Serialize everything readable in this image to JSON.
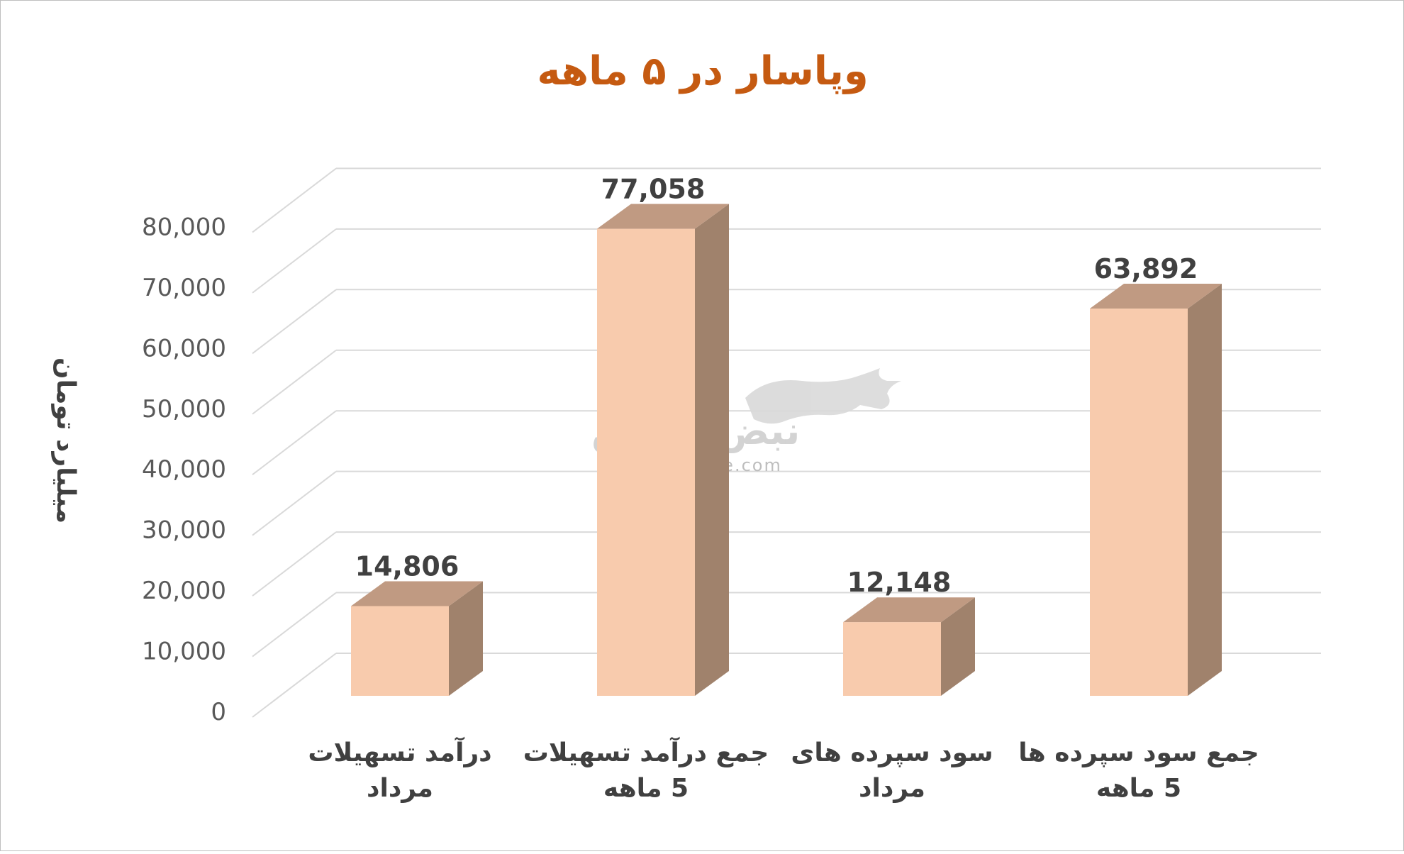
{
  "chart_data": {
    "type": "bar",
    "title": "وپاسار در ۵ ماهه",
    "ylabel": "میلیارد تومان",
    "ylim": [
      0,
      80000
    ],
    "yticks": [
      "0",
      "10,000",
      "20,000",
      "30,000",
      "40,000",
      "50,000",
      "60,000",
      "70,000",
      "80,000"
    ],
    "grid": true,
    "categories": [
      [
        "درآمد تسهیلات",
        "مرداد"
      ],
      [
        "جمع درآمد تسهیلات",
        "5 ماهه"
      ],
      [
        "سود سپرده های",
        "مرداد"
      ],
      [
        "جمع سود سپرده ها",
        "5 ماهه"
      ]
    ],
    "values": [
      14806,
      77058,
      12148,
      63892
    ],
    "value_labels": [
      "14,806",
      "77,058",
      "12,148",
      "63,892"
    ],
    "colors": {
      "bar_front": "#f8cbad",
      "bar_top": "#c09a82",
      "bar_side": "#a0826c",
      "title": "#c55a11",
      "grid": "#d9d9d9"
    }
  },
  "watermark": {
    "text_fa": "نبض بورس",
    "text_en": "nabzebourse.com"
  }
}
